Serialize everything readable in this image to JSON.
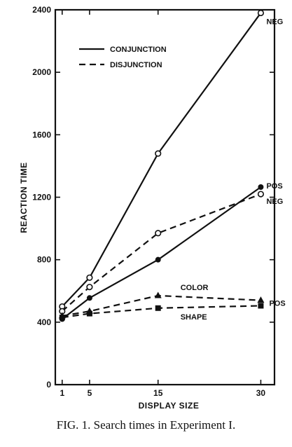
{
  "caption": "FIG. 1. Search times in Experiment I.",
  "chart_data": {
    "type": "line",
    "xlabel": "DISPLAY SIZE",
    "ylabel": "REACTION TIME",
    "xlim": [
      0,
      32
    ],
    "ylim": [
      0,
      2400
    ],
    "xticks": [
      1,
      5,
      15,
      30
    ],
    "yticks": [
      0,
      400,
      800,
      1200,
      1600,
      2000,
      2400
    ],
    "grid": false,
    "legend_position": "top-left",
    "legend": [
      {
        "label": "CONJUNCTION",
        "style": "solid"
      },
      {
        "label": "DISJUNCTION",
        "style": "dashed"
      }
    ],
    "x": [
      1,
      5,
      15,
      30
    ],
    "series": [
      {
        "label": "NEG",
        "condition": "CONJUNCTION",
        "style": "solid",
        "marker": "open-circle",
        "values": [
          500,
          685,
          1480,
          2380
        ]
      },
      {
        "label": "POS",
        "condition": "CONJUNCTION",
        "style": "solid",
        "marker": "filled-circle",
        "values": [
          420,
          555,
          800,
          1265
        ]
      },
      {
        "label": "NEG",
        "condition": "DISJUNCTION",
        "style": "dashed",
        "marker": "open-circle",
        "values": [
          470,
          625,
          970,
          1220
        ]
      },
      {
        "label": "COLOR",
        "condition": "DISJUNCTION",
        "style": "dashed",
        "marker": "filled-triangle",
        "values": [
          440,
          470,
          570,
          540
        ]
      },
      {
        "label": "SHAPE",
        "condition": "DISJUNCTION",
        "style": "dashed",
        "marker": "filled-square",
        "values": [
          430,
          455,
          490,
          505
        ]
      }
    ],
    "shared_end_label": "POS",
    "colors": {
      "ink": "#111111",
      "background": "#ffffff"
    }
  }
}
